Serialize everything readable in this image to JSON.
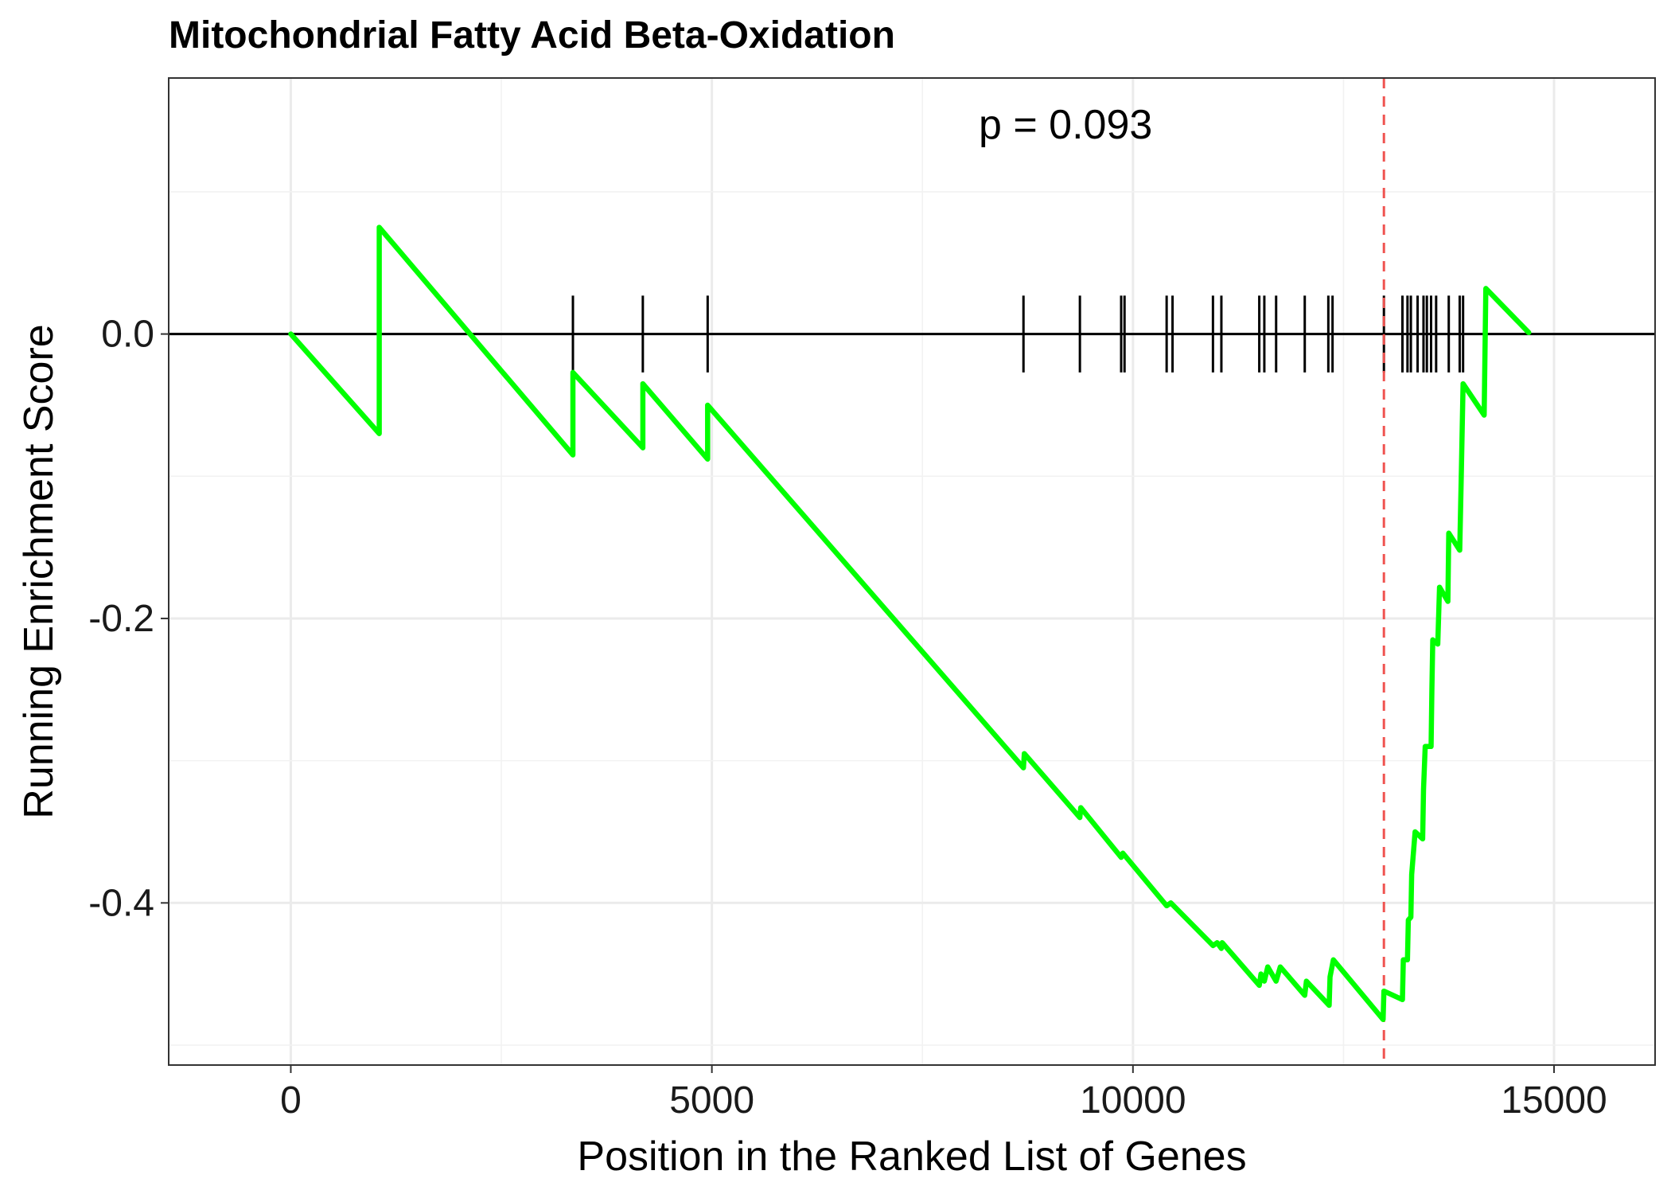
{
  "chart_data": {
    "type": "line",
    "title": "Mitochondrial Fatty Acid Beta-Oxidation",
    "xlabel": "Position in the Ranked List of Genes",
    "ylabel": "Running Enrichment Score",
    "xlim": [
      -1450,
      16200
    ],
    "ylim": [
      -0.514,
      0.18
    ],
    "x_ticks": [
      0,
      5000,
      10000,
      15000
    ],
    "x_tick_labels": [
      "0",
      "5000",
      "10000",
      "15000"
    ],
    "y_ticks": [
      0.0,
      -0.2,
      -0.4
    ],
    "y_tick_labels": [
      "0.0",
      "-0.2",
      "-0.4"
    ],
    "annotation": "p = 0.093",
    "leading_edge_x": 12980,
    "grid": true,
    "line_color": "#00ff00",
    "vline_color": "#ef5350",
    "zero_line": 0.0,
    "series": [
      {
        "color": "#00ff00",
        "points": [
          [
            0,
            0.0
          ],
          [
            1050,
            -0.07
          ],
          [
            1050,
            0.075
          ],
          [
            3350,
            -0.085
          ],
          [
            3350,
            -0.027
          ],
          [
            4180,
            -0.08
          ],
          [
            4180,
            -0.035
          ],
          [
            4950,
            -0.088
          ],
          [
            4950,
            -0.05
          ],
          [
            8700,
            -0.305
          ],
          [
            8710,
            -0.295
          ],
          [
            9370,
            -0.34
          ],
          [
            9380,
            -0.333
          ],
          [
            9860,
            -0.368
          ],
          [
            9880,
            -0.365
          ],
          [
            10400,
            -0.402
          ],
          [
            10450,
            -0.4
          ],
          [
            10950,
            -0.43
          ],
          [
            11000,
            -0.428
          ],
          [
            11050,
            -0.432
          ],
          [
            11060,
            -0.428
          ],
          [
            11500,
            -0.458
          ],
          [
            11520,
            -0.45
          ],
          [
            11560,
            -0.455
          ],
          [
            11600,
            -0.445
          ],
          [
            11700,
            -0.455
          ],
          [
            11750,
            -0.445
          ],
          [
            12040,
            -0.465
          ],
          [
            12060,
            -0.455
          ],
          [
            12330,
            -0.472
          ],
          [
            12340,
            -0.452
          ],
          [
            12380,
            -0.44
          ],
          [
            12970,
            -0.482
          ],
          [
            12980,
            -0.462
          ],
          [
            13200,
            -0.468
          ],
          [
            13210,
            -0.44
          ],
          [
            13260,
            -0.44
          ],
          [
            13270,
            -0.412
          ],
          [
            13300,
            -0.41
          ],
          [
            13310,
            -0.38
          ],
          [
            13350,
            -0.35
          ],
          [
            13440,
            -0.355
          ],
          [
            13450,
            -0.32
          ],
          [
            13470,
            -0.29
          ],
          [
            13540,
            -0.29
          ],
          [
            13550,
            -0.25
          ],
          [
            13560,
            -0.215
          ],
          [
            13620,
            -0.218
          ],
          [
            13640,
            -0.178
          ],
          [
            13740,
            -0.188
          ],
          [
            13750,
            -0.14
          ],
          [
            13880,
            -0.152
          ],
          [
            13900,
            -0.095
          ],
          [
            13920,
            -0.035
          ],
          [
            14170,
            -0.057
          ],
          [
            14190,
            0.032
          ],
          [
            14700,
            0.001
          ]
        ]
      }
    ],
    "rug_positions": [
      3350,
      4180,
      4950,
      8700,
      9370,
      9860,
      9900,
      10400,
      10470,
      10950,
      11050,
      11500,
      11560,
      11700,
      12040,
      12320,
      12370,
      12980,
      13200,
      13260,
      13300,
      13380,
      13450,
      13490,
      13540,
      13600,
      13750,
      13880,
      13920
    ]
  }
}
